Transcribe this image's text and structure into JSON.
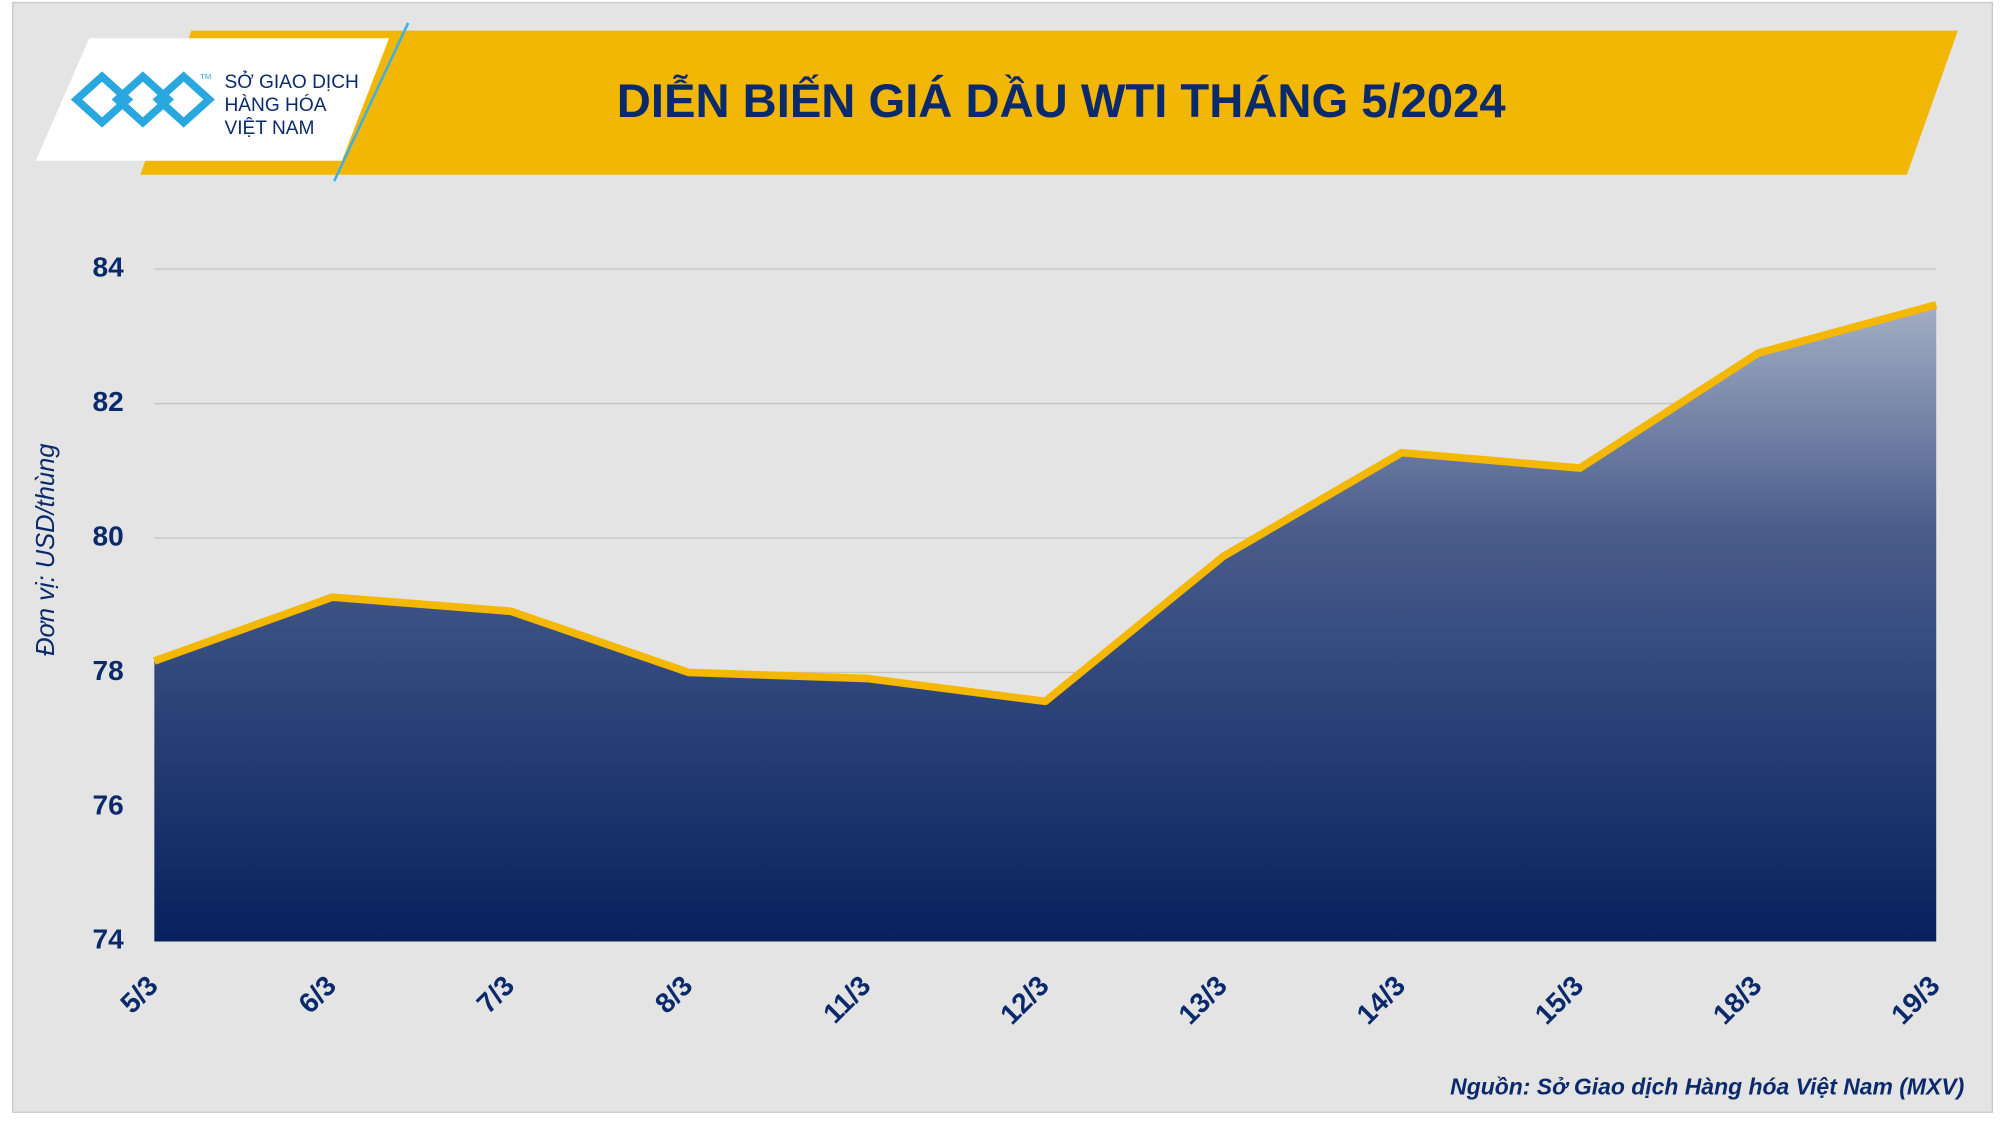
{
  "logo": {
    "lines": [
      "SỞ GIAO DỊCH",
      "HÀNG HÓA",
      "VIỆT NAM"
    ],
    "tm": "TM"
  },
  "chart_data": {
    "type": "area",
    "title": "DIỄN BIẾN GIÁ DẦU WTI THÁNG 5/2024",
    "y_label": "Đơn vị: USD/thùng",
    "source": "Nguồn: Sở Giao dịch Hàng hóa Việt Nam (MXV)",
    "categories": [
      "5/3",
      "6/3",
      "7/3",
      "8/3",
      "11/3",
      "12/3",
      "13/3",
      "14/3",
      "15/3",
      "18/3",
      "19/3"
    ],
    "values": [
      78.17,
      79.12,
      78.91,
      78.0,
      77.91,
      77.57,
      79.73,
      81.27,
      81.04,
      82.75,
      83.47
    ],
    "color": "#f5b800",
    "ylim": [
      74,
      84
    ],
    "yticks": [
      74,
      76,
      78,
      80,
      82,
      84
    ],
    "grid": true
  }
}
